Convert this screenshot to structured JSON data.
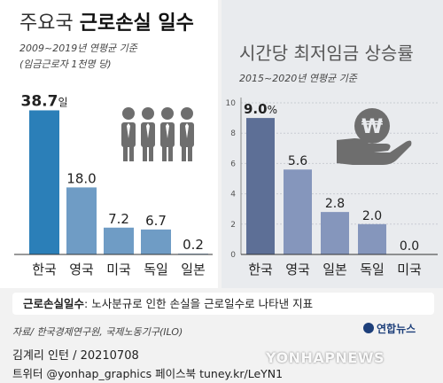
{
  "header": {
    "title_prefix": "주요국 ",
    "title_main": "근로손실 일수",
    "left_subtitle_1": "2009~2019년 연평균 기준",
    "left_subtitle_2": "(임금근로자 1천명 당)",
    "right_title": "시간당 최저임금 상승률",
    "right_subtitle": "2015~2020년 연평균 기준"
  },
  "chart_data": [
    {
      "type": "bar",
      "title": "주요국 근로손실 일수",
      "categories": [
        "한국",
        "영국",
        "미국",
        "독일",
        "일본"
      ],
      "values": [
        38.7,
        18.0,
        7.2,
        6.7,
        0.2
      ],
      "value_labels": [
        "38.7",
        "18.0",
        "7.2",
        "6.7",
        "0.2"
      ],
      "first_label_unit": "일",
      "ylim": [
        0,
        40
      ],
      "grid": false,
      "colors": {
        "highlight": "#2b7fb8",
        "bar": "#6f9cc5"
      }
    },
    {
      "type": "bar",
      "title": "시간당 최저임금 상승률",
      "categories": [
        "한국",
        "영국",
        "일본",
        "독일",
        "미국"
      ],
      "values": [
        9.0,
        5.6,
        2.8,
        2.0,
        0.0
      ],
      "value_labels": [
        "9.0",
        "5.6",
        "2.8",
        "2.0",
        "0.0"
      ],
      "first_label_unit": "%",
      "ylim": [
        0,
        10
      ],
      "yticks": [
        "0",
        "2",
        "4",
        "6",
        "8",
        "10"
      ],
      "grid": true,
      "colors": {
        "highlight": "#5d6f96",
        "bar": "#8596bc"
      }
    }
  ],
  "icons": {
    "left": "workers-group-icon",
    "right": "won-coin-hand-icon"
  },
  "note": {
    "term": "근로손실일수",
    "definition": ": 노사분규로 인한 손실을 근로일수로 나타낸 지표"
  },
  "source": "자료/ 한국경제연구원, 국제노동기구(ILO)",
  "logo": "연합뉴스",
  "credit": "김계리 인턴 / 20210708",
  "social": "트위터 @yonhap_graphics  페이스북 tuney.kr/LeYN1",
  "watermark": "YONHAPNEWS"
}
